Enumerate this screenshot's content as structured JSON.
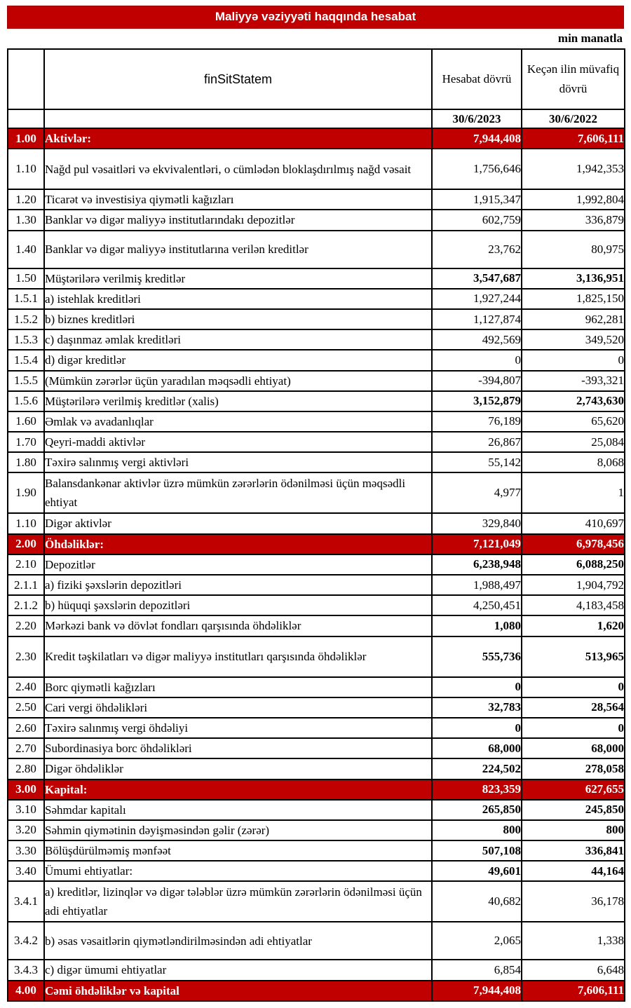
{
  "colors": {
    "accent_red": "#c00000",
    "text": "#000000",
    "background": "#ffffff",
    "section_text": "#ffffff"
  },
  "banner": {
    "title": "Maliyyə vəziyyəti haqqında hesabat"
  },
  "unit_label": "min manatla",
  "table": {
    "headers": {
      "code": "",
      "desc": "finSitStatem",
      "current": "Hesabat dövrü",
      "previous": "Keçən ilin müvafiq dövrü"
    },
    "date_row": {
      "current": "30/6/2023",
      "previous": "30/6/2022"
    },
    "rows": [
      {
        "code": "1.00",
        "label": "Aktivlər:",
        "v1": "7,944,408",
        "v2": "7,606,111",
        "style": "section",
        "size": "normal"
      },
      {
        "code": "1.10",
        "label": "Nağd pul vəsaitləri və  ekvivalentləri, o cümlədən bloklaşdırılmış nağd vəsait",
        "v1": "1,756,646",
        "v2": "1,942,353",
        "style": "item",
        "size": "tall"
      },
      {
        "code": "1.20",
        "label": "Ticarət və investisiya qiymətli kağızları",
        "v1": "1,915,347",
        "v2": "1,992,804",
        "style": "item",
        "size": "normal"
      },
      {
        "code": "1.30",
        "label": "Banklar və digər maliyyə institutlarındakı depozitlər",
        "v1": "602,759",
        "v2": "336,879",
        "style": "item",
        "size": "normal"
      },
      {
        "code": "1.40",
        "label": "Banklar və digər maliyyə institutlarına verilən kreditlər",
        "v1": "23,762",
        "v2": "80,975",
        "style": "item",
        "size": "pad"
      },
      {
        "code": "1.50",
        "label": "Müştərilərə verilmiş kreditlər",
        "v1": "3,547,687",
        "v2": "3,136,951",
        "style": "item",
        "size": "normal",
        "bold_nums": true
      },
      {
        "code": "1.5.1",
        "label": "a) istehlak kreditləri",
        "v1": "1,927,244",
        "v2": "1,825,150",
        "style": "item",
        "size": "normal"
      },
      {
        "code": "1.5.2",
        "label": "b) biznes kreditləri",
        "v1": "1,127,874",
        "v2": "962,281",
        "style": "item",
        "size": "normal"
      },
      {
        "code": "1.5.3",
        "label": "c) daşınmaz əmlak kreditləri",
        "v1": "492,569",
        "v2": "349,520",
        "style": "item",
        "size": "normal"
      },
      {
        "code": "1.5.4",
        "label": "d) digər kreditlər",
        "v1": "0",
        "v2": "0",
        "style": "item",
        "size": "normal"
      },
      {
        "code": "1.5.5",
        "label": "(Mümkün zərərlər üçün yaradılan məqsədli ehtiyat)",
        "v1": "-394,807",
        "v2": "-393,321",
        "style": "item",
        "size": "normal"
      },
      {
        "code": "1.5.6",
        "label": "Müştərilərə verilmiş kreditlər (xalis)",
        "v1": "3,152,879",
        "v2": "2,743,630",
        "style": "item",
        "size": "normal",
        "bold_nums": true
      },
      {
        "code": "1.60",
        "label": "Əmlak və avadanlıqlar",
        "v1": "76,189",
        "v2": "65,620",
        "style": "item",
        "size": "normal"
      },
      {
        "code": "1.70",
        "label": "Qeyri-maddi aktivlər",
        "v1": "26,867",
        "v2": "25,084",
        "style": "item",
        "size": "normal"
      },
      {
        "code": "1.80",
        "label": "Təxirə salınmış vergi aktivləri",
        "v1": "55,142",
        "v2": "8,068",
        "style": "item",
        "size": "normal"
      },
      {
        "code": "1.90",
        "label": "Balansdankənar aktivlər üzrə mümkün zərərlərin ödənilməsi üçün məqsədli ehtiyat",
        "v1": "4,977",
        "v2": "1",
        "style": "item",
        "size": "tall"
      },
      {
        "code": "1.10",
        "label": "Digər aktivlər",
        "v1": "329,840",
        "v2": "410,697",
        "style": "item",
        "size": "normal"
      },
      {
        "code": "2.00",
        "label": "Öhdəliklər:",
        "v1": "7,121,049",
        "v2": "6,978,456",
        "style": "section",
        "size": "normal"
      },
      {
        "code": "2.10",
        "label": "Depozitlər",
        "v1": "6,238,948",
        "v2": "6,088,250",
        "style": "item",
        "size": "normal",
        "bold_nums": true
      },
      {
        "code": "2.1.1",
        "label": "a) fiziki şəxslərin depozitləri",
        "v1": "1,988,497",
        "v2": "1,904,792",
        "style": "item",
        "size": "normal"
      },
      {
        "code": "2.1.2",
        "label": "b) hüquqi şəxslərin depozitləri",
        "v1": "4,250,451",
        "v2": "4,183,458",
        "style": "item",
        "size": "normal"
      },
      {
        "code": "2.20",
        "label": "Mərkəzi bank və dövlət fondları qarşısında öhdəliklər",
        "v1": "1,080",
        "v2": "1,620",
        "style": "item",
        "size": "normal",
        "bold_nums": true
      },
      {
        "code": "2.30",
        "label": "Kredit təşkilatları və digər maliyyə institutları qarşısında öhdəliklər",
        "v1": "555,736",
        "v2": "513,965",
        "style": "item",
        "size": "tall",
        "bold_nums": true
      },
      {
        "code": "2.40",
        "label": "Borc qiymətli kağızları",
        "v1": "0",
        "v2": "0",
        "style": "item",
        "size": "normal",
        "bold_nums": true
      },
      {
        "code": "2.50",
        "label": "Cari vergi öhdəlikləri",
        "v1": "32,783",
        "v2": "28,564",
        "style": "item",
        "size": "normal",
        "bold_nums": true
      },
      {
        "code": "2.60",
        "label": "Təxirə salınmış vergi öhdəliyi",
        "v1": "0",
        "v2": "0",
        "style": "item",
        "size": "normal",
        "bold_nums": true
      },
      {
        "code": "2.70",
        "label": "Subordinasiya borc öhdəlikləri",
        "v1": "68,000",
        "v2": "68,000",
        "style": "item",
        "size": "normal",
        "bold_nums": true
      },
      {
        "code": "2.80",
        "label": "Digər öhdəliklər",
        "v1": "224,502",
        "v2": "278,058",
        "style": "item",
        "size": "normal",
        "bold_nums": true
      },
      {
        "code": "3.00",
        "label": "Kapital:",
        "v1": "823,359",
        "v2": "627,655",
        "style": "section",
        "size": "normal"
      },
      {
        "code": "3.10",
        "label": "Səhmdar kapitalı",
        "v1": "265,850",
        "v2": "245,850",
        "style": "item",
        "size": "normal",
        "bold_nums": true
      },
      {
        "code": "3.20",
        "label": "Səhmin qiymətinin dəyişməsindən gəlir (zərər)",
        "v1": "800",
        "v2": "800",
        "style": "item",
        "size": "normal",
        "bold_nums": true
      },
      {
        "code": "3.30",
        "label": "Bölüşdürülməmiş mənfəət",
        "v1": "507,108",
        "v2": "336,841",
        "style": "item",
        "size": "normal",
        "bold_nums": true
      },
      {
        "code": "3.40",
        "label": "Ümumi ehtiyatlar:",
        "v1": "49,601",
        "v2": "44,164",
        "style": "item",
        "size": "normal",
        "bold_nums": true
      },
      {
        "code": "3.4.1",
        "label": "a) kreditlər, lizinqlər və digər tələblər üzrə mümkün zərərlərin ödənilməsi üçün adi ehtiyatlar",
        "v1": "40,682",
        "v2": "36,178",
        "style": "item",
        "size": "tall"
      },
      {
        "code": "3.4.2",
        "label": "b) əsas vəsaitlərin qiymətləndirilməsindən adi ehtiyatlar",
        "v1": "2,065",
        "v2": "1,338",
        "style": "item",
        "size": "pad"
      },
      {
        "code": "3.4.3",
        "label": "c) digər ümumi ehtiyatlar",
        "v1": "6,854",
        "v2": "6,648",
        "style": "item",
        "size": "normal"
      },
      {
        "code": "4.00",
        "label": "Cəmi öhdəliklər və kapital",
        "v1": "7,944,408",
        "v2": "7,606,111",
        "style": "section",
        "size": "normal"
      }
    ]
  }
}
